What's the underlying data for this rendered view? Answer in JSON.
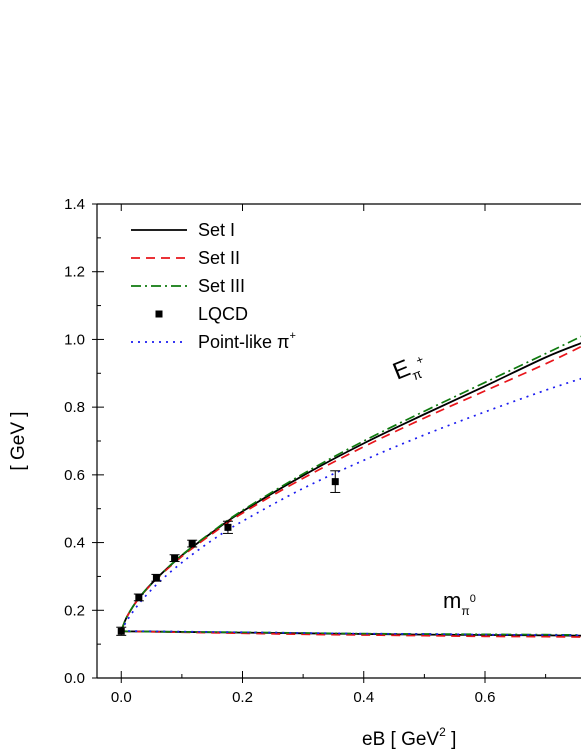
{
  "chart_data": {
    "type": "line",
    "title": "",
    "xlabel": "eB [ GeV",
    "xlabel_sup": "2",
    "xlabel_end": " ]",
    "ylabel": "[ GeV ]",
    "xlim": [
      -0.04,
      0.76
    ],
    "ylim": [
      0.0,
      1.4
    ],
    "x_ticks": [
      "0.0",
      "0.2",
      "0.4",
      "0.6"
    ],
    "y_ticks": [
      "0.0",
      "0.2",
      "0.4",
      "0.6",
      "0.8",
      "1.0",
      "1.2",
      "1.4"
    ],
    "grid": false,
    "legend_position": "top-left",
    "legend": [
      {
        "label": "Set I",
        "style": "solid",
        "color": "#000000"
      },
      {
        "label": "Set II",
        "style": "dashed",
        "color": "#e8151b"
      },
      {
        "label": "Set III",
        "style": "dashdot",
        "color": "#0f7a0f"
      },
      {
        "label": "LQCD",
        "style": "marker",
        "color": "#000000"
      },
      {
        "label": "Point-like π",
        "sup": "+",
        "style": "dotted",
        "color": "#1b1bf0"
      }
    ],
    "annotations": [
      {
        "text": "E",
        "sub": "π",
        "sup": "+",
        "near": "upper curves"
      },
      {
        "text": "m",
        "sub": "π",
        "sup": "0",
        "near": "lower curves"
      }
    ],
    "series": [
      {
        "name": "Set I",
        "color": "#000000",
        "style": "solid",
        "x": [
          0.0,
          0.01,
          0.03,
          0.06,
          0.1,
          0.15,
          0.2,
          0.3,
          0.4,
          0.5,
          0.6,
          0.7,
          0.76
        ],
        "y": [
          0.139,
          0.183,
          0.238,
          0.297,
          0.362,
          0.43,
          0.492,
          0.598,
          0.693,
          0.779,
          0.862,
          0.947,
          0.99
        ]
      },
      {
        "name": "Set II",
        "color": "#e8151b",
        "style": "dashed",
        "x": [
          0.0,
          0.01,
          0.03,
          0.06,
          0.1,
          0.15,
          0.2,
          0.3,
          0.4,
          0.5,
          0.6,
          0.7,
          0.76
        ],
        "y": [
          0.139,
          0.183,
          0.237,
          0.295,
          0.359,
          0.426,
          0.487,
          0.59,
          0.683,
          0.768,
          0.848,
          0.928,
          0.98
        ]
      },
      {
        "name": "Set III",
        "color": "#0f7a0f",
        "style": "dashdot",
        "x": [
          0.0,
          0.01,
          0.03,
          0.06,
          0.1,
          0.15,
          0.2,
          0.3,
          0.4,
          0.5,
          0.6,
          0.7,
          0.76
        ],
        "y": [
          0.139,
          0.183,
          0.238,
          0.297,
          0.363,
          0.432,
          0.495,
          0.603,
          0.7,
          0.788,
          0.873,
          0.958,
          1.01
        ]
      },
      {
        "name": "Point-like π+",
        "color": "#1b1bf0",
        "style": "dotted",
        "x": [
          0.0,
          0.01,
          0.03,
          0.06,
          0.1,
          0.15,
          0.2,
          0.3,
          0.4,
          0.5,
          0.6,
          0.7,
          0.76
        ],
        "y": [
          0.139,
          0.171,
          0.221,
          0.279,
          0.341,
          0.407,
          0.463,
          0.56,
          0.643,
          0.718,
          0.786,
          0.85,
          0.885
        ]
      },
      {
        "name": "Set I m_pi0",
        "color": "#000000",
        "style": "solid",
        "x": [
          0.0,
          0.1,
          0.2,
          0.3,
          0.4,
          0.5,
          0.6,
          0.7,
          0.76
        ],
        "y": [
          0.138,
          0.136,
          0.134,
          0.132,
          0.13,
          0.128,
          0.127,
          0.126,
          0.125
        ]
      },
      {
        "name": "Set II m_pi0",
        "color": "#e8151b",
        "style": "dashed",
        "x": [
          0.0,
          0.1,
          0.2,
          0.3,
          0.4,
          0.5,
          0.6,
          0.7,
          0.76
        ],
        "y": [
          0.138,
          0.135,
          0.132,
          0.129,
          0.127,
          0.125,
          0.123,
          0.122,
          0.121
        ]
      },
      {
        "name": "Set III m_pi0",
        "color": "#0f7a0f",
        "style": "dashdot",
        "x": [
          0.0,
          0.1,
          0.2,
          0.3,
          0.4,
          0.5,
          0.6,
          0.7,
          0.76
        ],
        "y": [
          0.138,
          0.136,
          0.135,
          0.133,
          0.131,
          0.13,
          0.129,
          0.128,
          0.127
        ]
      },
      {
        "name": "Point-like m_pi0",
        "color": "#1b1bf0",
        "style": "dotted",
        "x": [
          0.0,
          0.1,
          0.2,
          0.3,
          0.4,
          0.5,
          0.6,
          0.7,
          0.76
        ],
        "y": [
          0.139,
          0.137,
          0.135,
          0.133,
          0.131,
          0.13,
          0.128,
          0.127,
          0.126
        ]
      }
    ],
    "lqcd_points": [
      {
        "x": 0.0,
        "y": 0.138,
        "err": 0.012
      },
      {
        "x": 0.029,
        "y": 0.238,
        "err": 0.01
      },
      {
        "x": 0.058,
        "y": 0.296,
        "err": 0.01
      },
      {
        "x": 0.088,
        "y": 0.354,
        "err": 0.01
      },
      {
        "x": 0.117,
        "y": 0.397,
        "err": 0.01
      },
      {
        "x": 0.176,
        "y": 0.445,
        "err": 0.018
      },
      {
        "x": 0.353,
        "y": 0.58,
        "err": 0.032
      }
    ]
  }
}
